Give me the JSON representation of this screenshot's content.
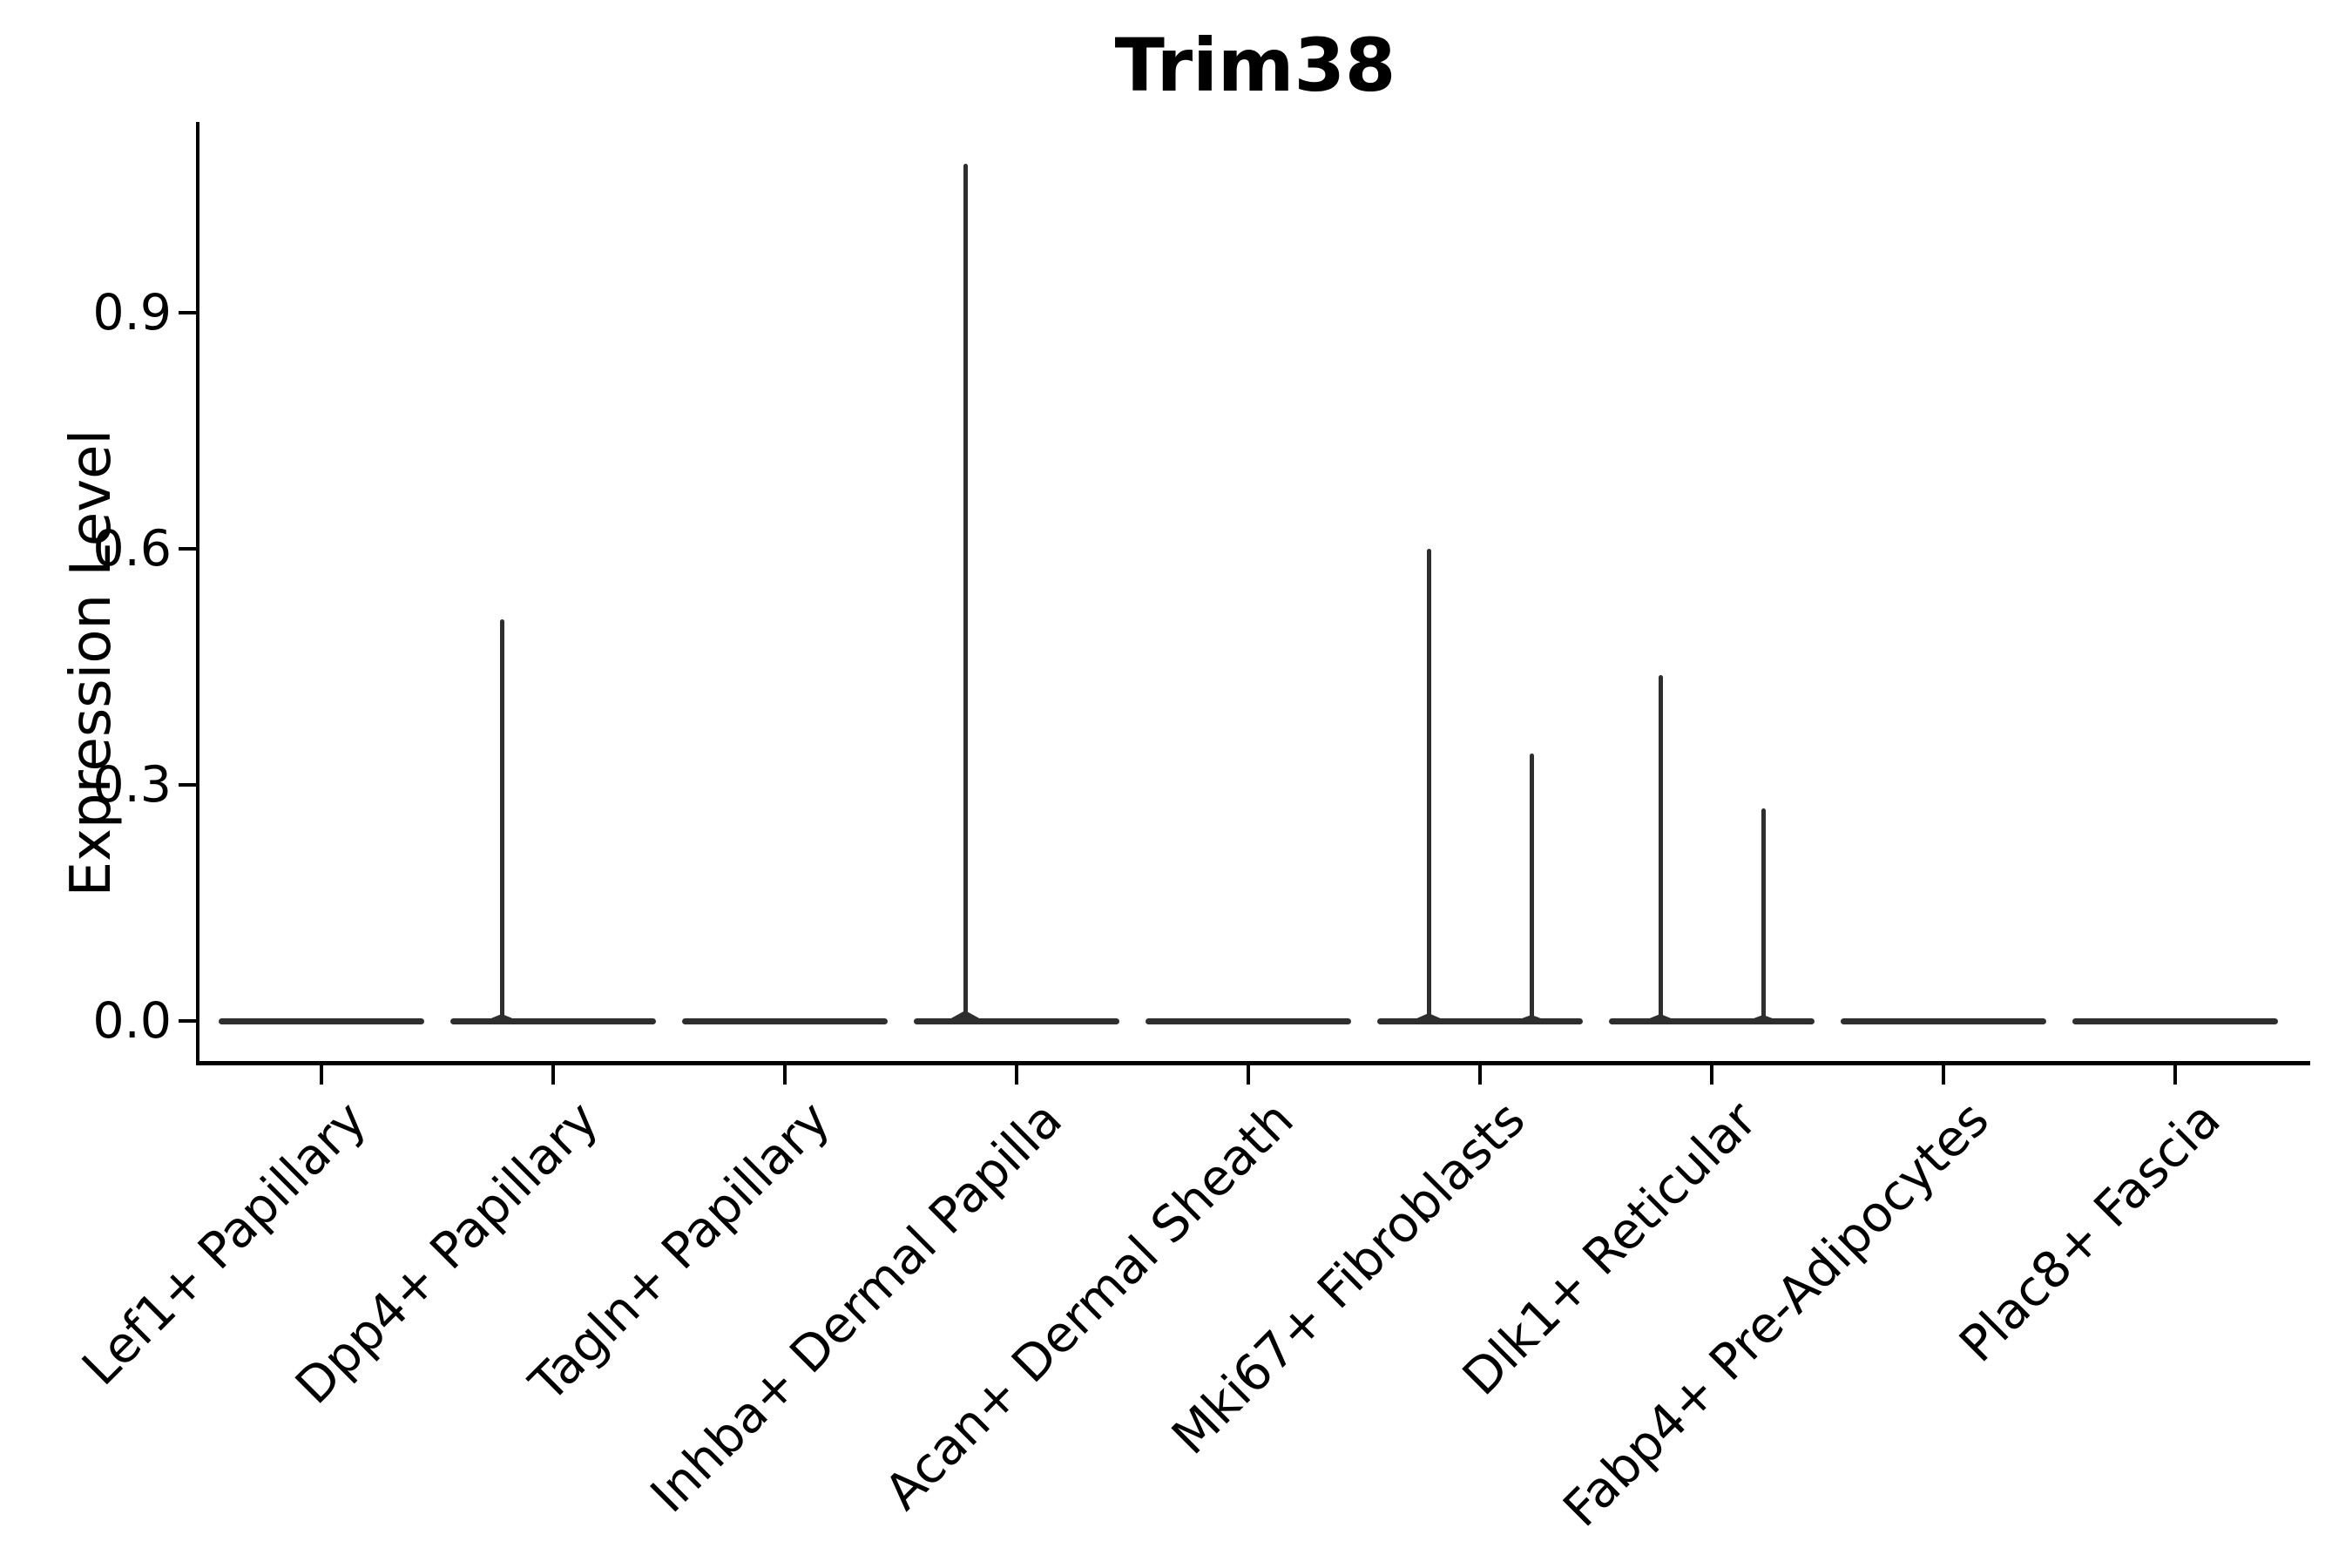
{
  "title": "Trim38",
  "y_axis": {
    "label": "Expression Level",
    "ticks": [
      "0.0",
      "0.3",
      "0.6",
      "0.9"
    ]
  },
  "x_axis": {
    "categories": [
      "Lef1+ Papillary",
      "Dpp4+ Papillary",
      "Tagln+ Papillary",
      "Inhba+ Dermal Papilla",
      "Acan+ Dermal Sheath",
      "Mki67+ Fibroblasts",
      "Dlk1+ Reticular",
      "Fabp4+ Pre-Adipocytes",
      "Plac8+ Fascia"
    ],
    "label_rotation_deg": 45
  },
  "colors": {
    "violin_line": "#2e2e2e",
    "axis": "#000000",
    "background": "#ffffff"
  },
  "chart_data": {
    "type": "violin",
    "title": "Trim38",
    "xlabel": "",
    "ylabel": "Expression Level",
    "categories": [
      "Lef1+ Papillary",
      "Dpp4+ Papillary",
      "Tagln+ Papillary",
      "Inhba+ Dermal Papilla",
      "Acan+ Dermal Sheath",
      "Mki67+ Fibroblasts",
      "Dlk1+ Reticular",
      "Fabp4+ Pre-Adipocytes",
      "Plac8+ Fascia"
    ],
    "y_ticks": [
      0.0,
      0.3,
      0.6,
      0.9
    ],
    "ylim": [
      0,
      1.14
    ],
    "grid": false,
    "legend": "none",
    "description": "Violin plot of Trim38 expression per fibroblast cluster; two dodged violins per cluster. Expression is ~0 for nearly all cells, so violin bodies collapse to flat bars at y=0; thin vertical spikes mark the maximum expression reached by rare expressing cells.",
    "violins": [
      {
        "category": "Lef1+ Papillary",
        "median": 0,
        "spikes": []
      },
      {
        "category": "Dpp4+ Papillary",
        "median": 0,
        "spikes": [
          {
            "side": "left",
            "max": 0.51
          }
        ]
      },
      {
        "category": "Tagln+ Papillary",
        "median": 0,
        "spikes": []
      },
      {
        "category": "Inhba+ Dermal Papilla",
        "median": 0,
        "spikes": [
          {
            "side": "left",
            "max": 1.09
          }
        ]
      },
      {
        "category": "Acan+ Dermal Sheath",
        "median": 0,
        "spikes": []
      },
      {
        "category": "Mki67+ Fibroblasts",
        "median": 0,
        "spikes": [
          {
            "side": "left",
            "max": 0.6
          },
          {
            "side": "right",
            "max": 0.34
          }
        ]
      },
      {
        "category": "Dlk1+ Reticular",
        "median": 0,
        "spikes": [
          {
            "side": "left",
            "max": 0.44
          },
          {
            "side": "right",
            "max": 0.27
          }
        ]
      },
      {
        "category": "Fabp4+ Pre-Adipocytes",
        "median": 0,
        "spikes": []
      },
      {
        "category": "Plac8+ Fascia",
        "median": 0,
        "spikes": []
      }
    ]
  }
}
